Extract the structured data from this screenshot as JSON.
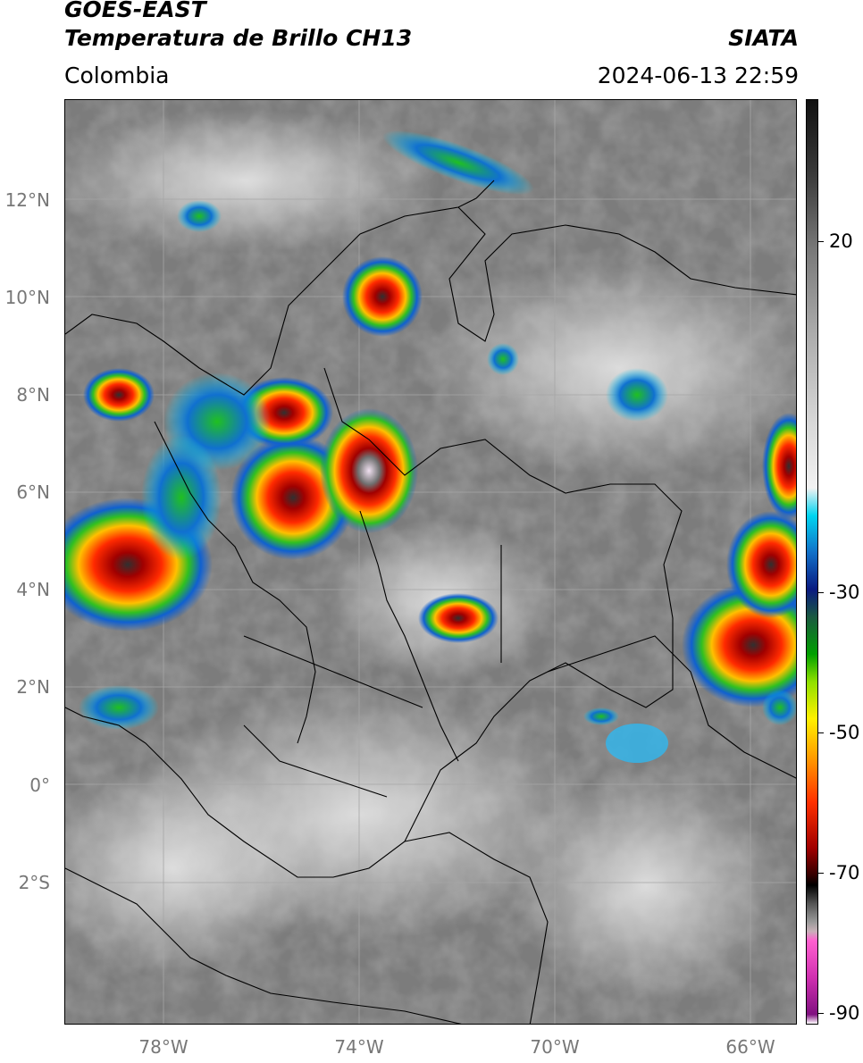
{
  "header": {
    "satellite": "GOES-EAST",
    "product": "Temperatura de Brillo CH13",
    "organization": "SIATA",
    "region": "Colombia",
    "timestamp": "2024-06-13 22:59"
  },
  "colorbar": {
    "labels": [
      "20",
      "-30",
      "-50",
      "-70",
      "-90"
    ],
    "range": [
      -92,
      35
    ]
  },
  "axes": {
    "lat_labels": [
      "12°N",
      "10°N",
      "8°N",
      "6°N",
      "4°N",
      "2°N",
      "0°",
      "2°S"
    ],
    "lon_labels": [
      "78°W",
      "74°W",
      "70°W",
      "66°W"
    ]
  },
  "colors": {
    "cloud_cold_core": "#ff0000",
    "cloud_warm_band": "#ffd000",
    "cloud_green_band": "#20c020",
    "cloud_blue_band": "#1060d0",
    "background_clouds": "#888888"
  }
}
